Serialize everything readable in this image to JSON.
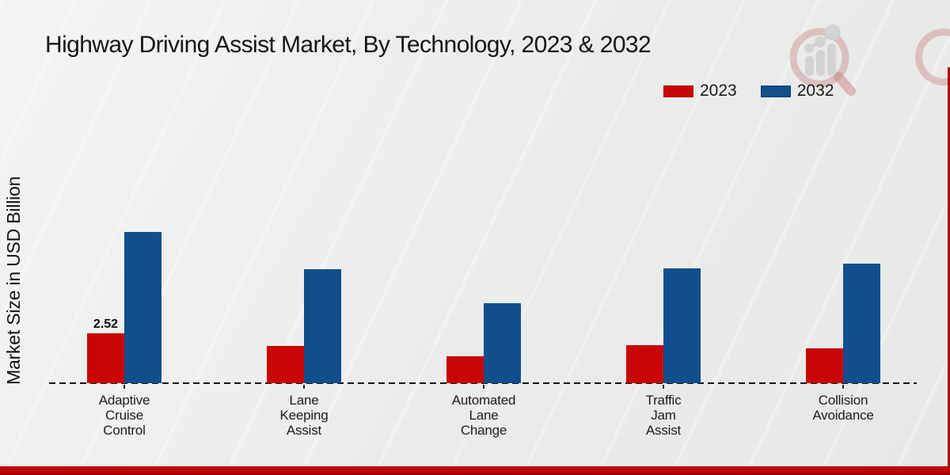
{
  "title": "Highway Driving Assist Market, By Technology, 2023 & 2032",
  "chart_data": {
    "type": "bar",
    "title": "Highway Driving Assist Market, By Technology, 2023 & 2032",
    "xlabel": "",
    "ylabel": "Market Size in USD Billion",
    "ylim": [
      0,
      8
    ],
    "grid": false,
    "legend_position": "top-right",
    "baseline_style": "dashed",
    "categories": [
      "Adaptive Cruise Control",
      "Lane Keeping Assist",
      "Automated Lane Change",
      "Traffic Jam Assist",
      "Collision Avoidance"
    ],
    "category_lines": [
      [
        "Adaptive",
        "Cruise",
        "Control"
      ],
      [
        "Lane",
        "Keeping",
        "Assist"
      ],
      [
        "Automated",
        "Lane",
        "Change"
      ],
      [
        "Traffic",
        "Jam",
        "Assist"
      ],
      [
        "Collision",
        "Avoidance"
      ]
    ],
    "series": [
      {
        "name": "2023",
        "color": "#c90404",
        "values": [
          2.52,
          1.88,
          1.36,
          1.92,
          1.76
        ]
      },
      {
        "name": "2032",
        "color": "#114f8c",
        "values": [
          7.64,
          5.76,
          4.04,
          5.8,
          6.04
        ]
      }
    ],
    "value_labels": [
      {
        "series": "2023",
        "category": "Adaptive Cruise Control",
        "category_index": 0,
        "text": "2.52"
      }
    ]
  },
  "footer": {
    "accent_color": "#bf0404"
  },
  "watermark": {
    "icon": "magnifier-bar-chart-logo"
  }
}
